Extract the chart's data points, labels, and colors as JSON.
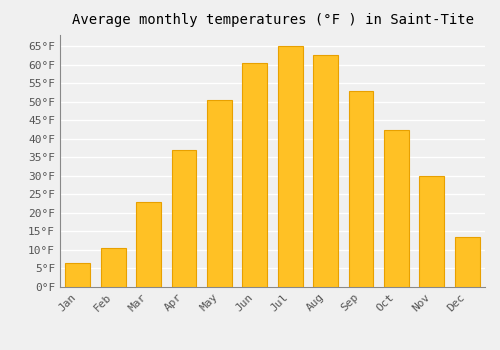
{
  "title": "Average monthly temperatures (°F ) in Saint-Tite",
  "months": [
    "Jan",
    "Feb",
    "Mar",
    "Apr",
    "May",
    "Jun",
    "Jul",
    "Aug",
    "Sep",
    "Oct",
    "Nov",
    "Dec"
  ],
  "values": [
    6.5,
    10.5,
    23,
    37,
    50.5,
    60.5,
    65,
    62.5,
    53,
    42.5,
    30,
    13.5
  ],
  "bar_color": "#FFC125",
  "bar_edge_color": "#E8A000",
  "ylim": [
    0,
    68
  ],
  "yticks": [
    0,
    5,
    10,
    15,
    20,
    25,
    30,
    35,
    40,
    45,
    50,
    55,
    60,
    65
  ],
  "ytick_labels": [
    "0°F",
    "5°F",
    "10°F",
    "15°F",
    "20°F",
    "25°F",
    "30°F",
    "35°F",
    "40°F",
    "45°F",
    "50°F",
    "55°F",
    "60°F",
    "65°F"
  ],
  "bg_color": "#f0f0f0",
  "grid_color": "#ffffff",
  "title_fontsize": 10,
  "tick_fontsize": 8,
  "bar_width": 0.7
}
